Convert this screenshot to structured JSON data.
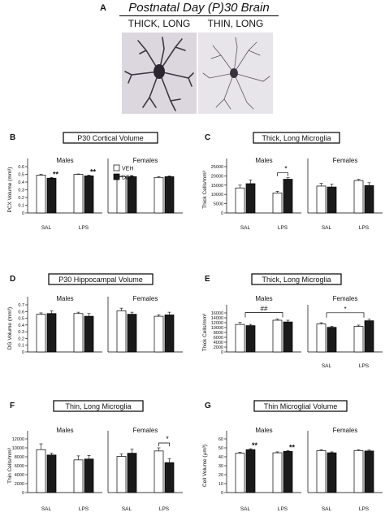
{
  "figure": {
    "header": {
      "letter": "A",
      "title": "Postnatal Day (P)30 Brain"
    },
    "micrographs": [
      {
        "label": "THICK, LONG"
      },
      {
        "label": "THIN, LONG"
      }
    ],
    "legend": [
      {
        "label": "VEH",
        "color": "#ffffff"
      },
      {
        "label": "DEP",
        "color": "#1a1a1a"
      }
    ]
  },
  "chart_data": [
    {
      "panel": "B",
      "type": "bar",
      "title": "P30 Cortical Volume",
      "ylabel": "PCX Volume (mm³)",
      "ylim": [
        0,
        0.6
      ],
      "yticks": [
        "0",
        "0.1",
        "0.2",
        "0.3",
        "0.4",
        "0.5",
        "0.6"
      ],
      "groups": [
        {
          "name": "Males",
          "categories": [
            "SAL",
            "LPS"
          ],
          "series": [
            {
              "name": "VEH",
              "values": [
                0.49,
                0.5
              ]
            },
            {
              "name": "DEP",
              "values": [
                0.45,
                0.48
              ]
            }
          ],
          "errors": [
            [
              0.01,
              0.005
            ],
            [
              0.01,
              0.01
            ]
          ],
          "annotations": [
            {
              "text": "**",
              "category": 0,
              "series": 1
            },
            {
              "text": "**",
              "category": 1,
              "series": 1
            }
          ]
        },
        {
          "name": "Females",
          "categories": [],
          "series": [
            {
              "name": "VEH",
              "values": [
                0.47,
                0.46
              ]
            },
            {
              "name": "DEP",
              "values": [
                0.47,
                0.47
              ]
            }
          ],
          "errors": [
            [
              0.005,
              0.01
            ],
            [
              0.01,
              0.01
            ]
          ],
          "annotations": []
        }
      ]
    },
    {
      "panel": "C",
      "type": "bar",
      "title": "Thick, Long Microglia",
      "ylabel": "Thick Cells/mm³",
      "ylim": [
        0,
        25000
      ],
      "yticks": [
        "0",
        "5000",
        "10000",
        "15000",
        "20000",
        "25000"
      ],
      "groups": [
        {
          "name": "Males",
          "categories": [
            "SAL",
            "LPS"
          ],
          "series": [
            {
              "name": "VEH",
              "values": [
                13500,
                10800
              ]
            },
            {
              "name": "DEP",
              "values": [
                15800,
                18200
              ]
            }
          ],
          "errors": [
            [
              1500,
              900
            ],
            [
              2000,
              800
            ]
          ],
          "annotations": [
            {
              "text": "*",
              "bracket": [
                [
                  1,
                  0
                ],
                [
                  1,
                  1
                ]
              ]
            }
          ]
        },
        {
          "name": "Females",
          "categories": [
            "SAL",
            "LPS"
          ],
          "series": [
            {
              "name": "VEH",
              "values": [
                14500,
                17500
              ]
            },
            {
              "name": "DEP",
              "values": [
                14000,
                14800
              ]
            }
          ],
          "errors": [
            [
              1500,
              600
            ],
            [
              1500,
              1500
            ]
          ],
          "annotations": []
        }
      ]
    },
    {
      "panel": "D",
      "type": "bar",
      "title": "P30 Hippocampal Volume",
      "ylabel": "DG Volume (mm³)",
      "ylim": [
        0,
        0.7
      ],
      "yticks": [
        "0",
        "0.1",
        "0.2",
        "0.3",
        "0.4",
        "0.5",
        "0.6",
        "0.7"
      ],
      "groups": [
        {
          "name": "Males",
          "categories": [
            "SAL",
            "LPS"
          ],
          "series": [
            {
              "name": "VEH",
              "values": [
                0.56,
                0.57
              ]
            },
            {
              "name": "DEP",
              "values": [
                0.57,
                0.53
              ]
            }
          ],
          "errors": [
            [
              0.02,
              0.02
            ],
            [
              0.04,
              0.04
            ]
          ],
          "annotations": []
        },
        {
          "name": "Females",
          "categories": [],
          "series": [
            {
              "name": "VEH",
              "values": [
                0.61,
                0.53
              ]
            },
            {
              "name": "DEP",
              "values": [
                0.56,
                0.55
              ]
            }
          ],
          "errors": [
            [
              0.04,
              0.02
            ],
            [
              0.03,
              0.04
            ]
          ],
          "annotations": []
        }
      ]
    },
    {
      "panel": "E",
      "type": "bar",
      "title": "Thick, Long Microglia",
      "ylabel": "Thick Cells/mm³",
      "ylim": [
        0,
        16000
      ],
      "yticks": [
        "0",
        "2000",
        "4000",
        "6000",
        "8000",
        "10000",
        "12000",
        "14000",
        "16000"
      ],
      "groups": [
        {
          "name": "Males",
          "categories": [],
          "series": [
            {
              "name": "VEH",
              "values": [
                11300,
                13000
              ]
            },
            {
              "name": "DEP",
              "values": [
                10800,
                12300
              ]
            }
          ],
          "errors": [
            [
              800,
              500
            ],
            [
              500,
              700
            ]
          ],
          "annotations": [
            {
              "text": "##",
              "bracket": [
                [
                  0
                ],
                [
                  1
                ]
              ]
            }
          ]
        },
        {
          "name": "Females",
          "categories": [
            "SAL",
            "LPS"
          ],
          "series": [
            {
              "name": "VEH",
              "values": [
                11500,
                10500
              ]
            },
            {
              "name": "DEP",
              "values": [
                10100,
                12800
              ]
            }
          ],
          "errors": [
            [
              500,
              500
            ],
            [
              400,
              600
            ]
          ],
          "annotations": [
            {
              "text": "*",
              "bracket": [
                [
                  0
                ],
                [
                  1
                ]
              ]
            }
          ]
        }
      ]
    },
    {
      "panel": "F",
      "type": "bar",
      "title": "Thin, Long Microglia",
      "ylabel": "Thin Cells/mm³",
      "ylim": [
        0,
        12000
      ],
      "yticks": [
        "0",
        "2000",
        "4000",
        "6000",
        "8000",
        "10000",
        "12000"
      ],
      "groups": [
        {
          "name": "Males",
          "categories": [
            "SAL",
            "LPS"
          ],
          "series": [
            {
              "name": "VEH",
              "values": [
                9600,
                7300
              ]
            },
            {
              "name": "DEP",
              "values": [
                8400,
                7500
              ]
            }
          ],
          "errors": [
            [
              1300,
              900
            ],
            [
              400,
              800
            ]
          ],
          "annotations": []
        },
        {
          "name": "Females",
          "categories": [
            "SAL",
            "LPS"
          ],
          "series": [
            {
              "name": "VEH",
              "values": [
                8100,
                9300
              ]
            },
            {
              "name": "DEP",
              "values": [
                8800,
                6700
              ]
            }
          ],
          "errors": [
            [
              500,
              700
            ],
            [
              900,
              900
            ]
          ],
          "annotations": [
            {
              "text": "*",
              "bracket": [
                [
                  1,
                  0
                ],
                [
                  1,
                  1
                ]
              ]
            }
          ]
        }
      ]
    },
    {
      "panel": "G",
      "type": "bar",
      "title": "Thin Microglial Volume",
      "ylabel": "Cell Volume (µm³)",
      "ylim": [
        0,
        60
      ],
      "yticks": [
        "0",
        "10",
        "20",
        "30",
        "40",
        "50",
        "60"
      ],
      "groups": [
        {
          "name": "Males",
          "categories": [
            "SAL",
            "LPS"
          ],
          "series": [
            {
              "name": "VEH",
              "values": [
                44,
                44.5
              ]
            },
            {
              "name": "DEP",
              "values": [
                48,
                46
              ]
            }
          ],
          "errors": [
            [
              1,
              1
            ],
            [
              1,
              1
            ]
          ],
          "annotations": [
            {
              "text": "**",
              "category": 0,
              "series": 1
            },
            {
              "text": "**",
              "category": 1,
              "series": 1
            }
          ]
        },
        {
          "name": "Females",
          "categories": [
            "SAL",
            "LPS"
          ],
          "series": [
            {
              "name": "VEH",
              "values": [
                47,
                47
              ]
            },
            {
              "name": "DEP",
              "values": [
                44.5,
                46.5
              ]
            }
          ],
          "errors": [
            [
              1,
              1
            ],
            [
              1,
              1
            ]
          ],
          "annotations": []
        }
      ]
    }
  ]
}
